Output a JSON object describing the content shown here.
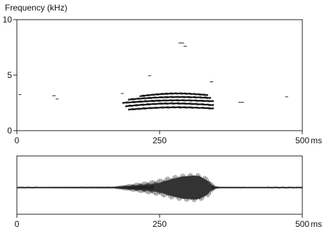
{
  "chart_data": [
    {
      "type": "spectrogram",
      "title": "Frequency (kHz)",
      "xlabel": "",
      "ylabel": "Frequency (kHz)",
      "xlim": [
        0,
        500
      ],
      "ylim": [
        0,
        10
      ],
      "x_unit_label": "ms",
      "x_ticks": [
        {
          "value": 0,
          "label": "0"
        },
        {
          "value": 250,
          "label": "250"
        },
        {
          "value": 500,
          "label": "500"
        }
      ],
      "y_ticks": [
        {
          "value": 0,
          "label": "0"
        },
        {
          "value": 5,
          "label": "5"
        },
        {
          "value": 10,
          "label": "10"
        }
      ],
      "grid": false,
      "harmonic_bands": [
        {
          "t_start": 195,
          "t_end": 345,
          "freq_start": 1.9,
          "freq_peak": 2.15,
          "freq_end": 2.0
        },
        {
          "t_start": 190,
          "t_end": 345,
          "freq_start": 2.2,
          "freq_peak": 2.5,
          "freq_end": 2.3
        },
        {
          "t_start": 185,
          "t_end": 345,
          "freq_start": 2.5,
          "freq_peak": 2.8,
          "freq_end": 2.65
        },
        {
          "t_start": 195,
          "t_end": 340,
          "freq_start": 2.8,
          "freq_peak": 3.1,
          "freq_end": 2.95
        },
        {
          "t_start": 215,
          "t_end": 335,
          "freq_start": 3.1,
          "freq_peak": 3.4,
          "freq_end": 3.2
        }
      ],
      "noise_specks": [
        {
          "t": 3,
          "f": 3.25,
          "len": 5
        },
        {
          "t": 62,
          "f": 3.15,
          "len": 6
        },
        {
          "t": 68,
          "f": 2.85,
          "len": 5
        },
        {
          "t": 182,
          "f": 3.35,
          "len": 5
        },
        {
          "t": 230,
          "f": 4.95,
          "len": 5
        },
        {
          "t": 283,
          "f": 7.9,
          "len": 10
        },
        {
          "t": 292,
          "f": 7.6,
          "len": 6
        },
        {
          "t": 338,
          "f": 4.4,
          "len": 6
        },
        {
          "t": 388,
          "f": 2.55,
          "len": 10
        },
        {
          "t": 470,
          "f": 3.05,
          "len": 5
        }
      ]
    },
    {
      "type": "waveform",
      "xlim": [
        0,
        500
      ],
      "x_unit_label": "ms",
      "x_ticks": [
        {
          "value": 0,
          "label": "0"
        },
        {
          "value": 250,
          "label": "250"
        },
        {
          "value": 500,
          "label": "500"
        }
      ],
      "envelope": [
        [
          0,
          0.06
        ],
        [
          170,
          0.08
        ],
        [
          190,
          0.2
        ],
        [
          210,
          0.33
        ],
        [
          230,
          0.45
        ],
        [
          250,
          0.6
        ],
        [
          270,
          0.8
        ],
        [
          290,
          0.95
        ],
        [
          310,
          1.0
        ],
        [
          320,
          0.97
        ],
        [
          335,
          0.7
        ],
        [
          342,
          0.35
        ],
        [
          348,
          0.12
        ],
        [
          355,
          0.07
        ],
        [
          500,
          0.06
        ]
      ]
    }
  ]
}
